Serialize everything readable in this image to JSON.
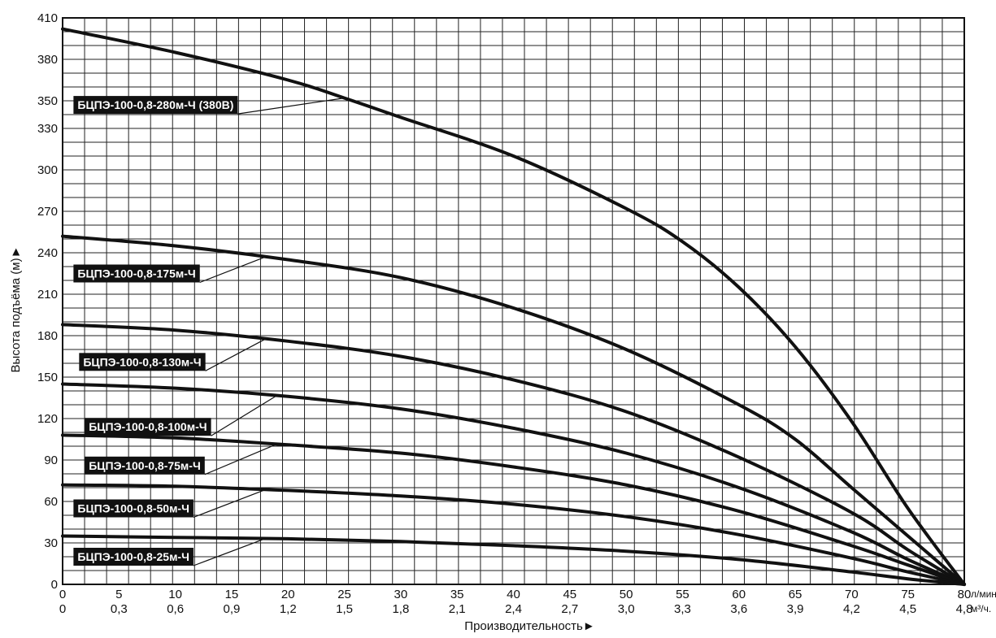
{
  "chart_data": {
    "type": "line",
    "xlabel": "Производительность►",
    "ylabel": "Высота подъёма (м)►",
    "x_unit": "л/мин.",
    "x2_unit": "м³/ч.",
    "xlim": [
      0,
      80
    ],
    "ylim": [
      0,
      410
    ],
    "grid": true,
    "x_ticks": [
      "0",
      "5",
      "10",
      "15",
      "20",
      "25",
      "30",
      "35",
      "40",
      "45",
      "50",
      "55",
      "60",
      "65",
      "70",
      "75",
      "80"
    ],
    "x2_ticks": [
      "0",
      "0,3",
      "0,6",
      "0,9",
      "1,2",
      "1,5",
      "1,8",
      "2,1",
      "2,4",
      "2,7",
      "3,0",
      "3,3",
      "3,6",
      "3,9",
      "4,2",
      "4,5",
      "4,8"
    ],
    "y_ticks": [
      "0",
      "30",
      "60",
      "90",
      "120",
      "150",
      "180",
      "210",
      "240",
      "270",
      "300",
      "330",
      "350",
      "380",
      "410"
    ],
    "y_tick_values": [
      0,
      30,
      60,
      90,
      120,
      150,
      180,
      210,
      240,
      270,
      300,
      330,
      350,
      380,
      410
    ],
    "series": [
      {
        "name": "БЦПЭ-100-0,8-280м-Ч (380В)",
        "x": [
          0,
          10,
          20,
          25,
          30,
          40,
          50,
          55,
          60,
          65,
          70,
          75,
          80
        ],
        "y": [
          402,
          385,
          365,
          352,
          338,
          310,
          272,
          248,
          215,
          172,
          118,
          55,
          0
        ],
        "label_at": 25
      },
      {
        "name": "БЦПЭ-100-0,8-175м-Ч",
        "x": [
          0,
          10,
          20,
          30,
          40,
          50,
          60,
          65,
          70,
          75,
          80
        ],
        "y": [
          252,
          245,
          235,
          222,
          200,
          170,
          130,
          105,
          70,
          35,
          0
        ],
        "label_at": 18
      },
      {
        "name": "БЦПЭ-100-0,8-130м-Ч",
        "x": [
          0,
          10,
          20,
          30,
          40,
          50,
          60,
          70,
          75,
          80
        ],
        "y": [
          188,
          184,
          176,
          165,
          148,
          125,
          92,
          52,
          25,
          0
        ],
        "label_at": 18
      },
      {
        "name": "БЦПЭ-100-0,8-100м-Ч",
        "x": [
          0,
          10,
          20,
          30,
          40,
          50,
          60,
          70,
          75,
          80
        ],
        "y": [
          145,
          142,
          136,
          127,
          113,
          95,
          70,
          38,
          18,
          0
        ],
        "label_at": 19
      },
      {
        "name": "БЦПЭ-100-0,8-75м-Ч",
        "x": [
          0,
          10,
          20,
          30,
          40,
          50,
          60,
          70,
          75,
          80
        ],
        "y": [
          108,
          106,
          101,
          95,
          85,
          72,
          53,
          28,
          14,
          0
        ],
        "label_at": 19
      },
      {
        "name": "БЦПЭ-100-0,8-50м-Ч",
        "x": [
          0,
          10,
          20,
          30,
          40,
          50,
          60,
          70,
          75,
          80
        ],
        "y": [
          72,
          71,
          68,
          64,
          58,
          49,
          36,
          19,
          9,
          0
        ],
        "label_at": 18
      },
      {
        "name": "БЦПЭ-100-0,8-25м-Ч",
        "x": [
          0,
          10,
          20,
          30,
          40,
          50,
          60,
          70,
          75,
          80
        ],
        "y": [
          35,
          34,
          33,
          31,
          28,
          24,
          18,
          9,
          4,
          0
        ],
        "label_at": 18
      }
    ],
    "label_positions": [
      {
        "x": 0.1,
        "y": 347
      },
      {
        "x": 0.1,
        "y": 225
      },
      {
        "x": 0.6,
        "y": 161
      },
      {
        "x": 1.1,
        "y": 114
      },
      {
        "x": 1.1,
        "y": 86
      },
      {
        "x": 0.1,
        "y": 55
      },
      {
        "x": 0.1,
        "y": 20
      }
    ]
  }
}
